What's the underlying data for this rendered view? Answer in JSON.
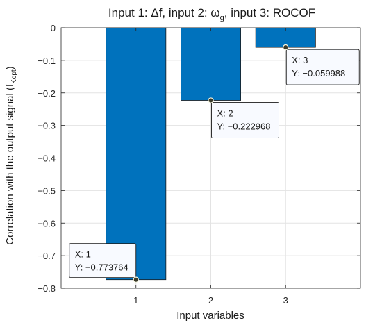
{
  "chart_data": {
    "type": "bar",
    "title": "Input 1: Δf, input 2: ω",
    "title_subscript": "g",
    "title_suffix": ", input 3: ROCOF",
    "xlabel": "Input variables",
    "ylabel": "Correlation with the output signal (f",
    "ylabel_subscript": "Kopt",
    "ylabel_suffix": ")",
    "categories": [
      "1",
      "2",
      "3"
    ],
    "x": [
      1,
      2,
      3
    ],
    "values": [
      -0.773764,
      -0.222968,
      -0.059988
    ],
    "xlim": [
      0,
      4
    ],
    "ylim": [
      -0.8,
      0
    ],
    "yticks": [
      0,
      -0.1,
      -0.2,
      -0.3,
      -0.4,
      -0.5,
      -0.6,
      -0.7,
      -0.8
    ],
    "ytick_labels": [
      "0",
      "−0.1",
      "−0.2",
      "−0.3",
      "−0.4",
      "−0.5",
      "−0.6",
      "−0.7",
      "−0.8"
    ],
    "xtick_labels": [
      "1",
      "2",
      "3"
    ],
    "grid": true,
    "bar_color": "#0072bd",
    "datatips": [
      {
        "x_label": "X: 1",
        "y_label": "Y: −0.773764"
      },
      {
        "x_label": "X: 2",
        "y_label": "Y: −0.222968"
      },
      {
        "x_label": "X: 3",
        "y_label": "Y: −0.059988"
      }
    ]
  }
}
